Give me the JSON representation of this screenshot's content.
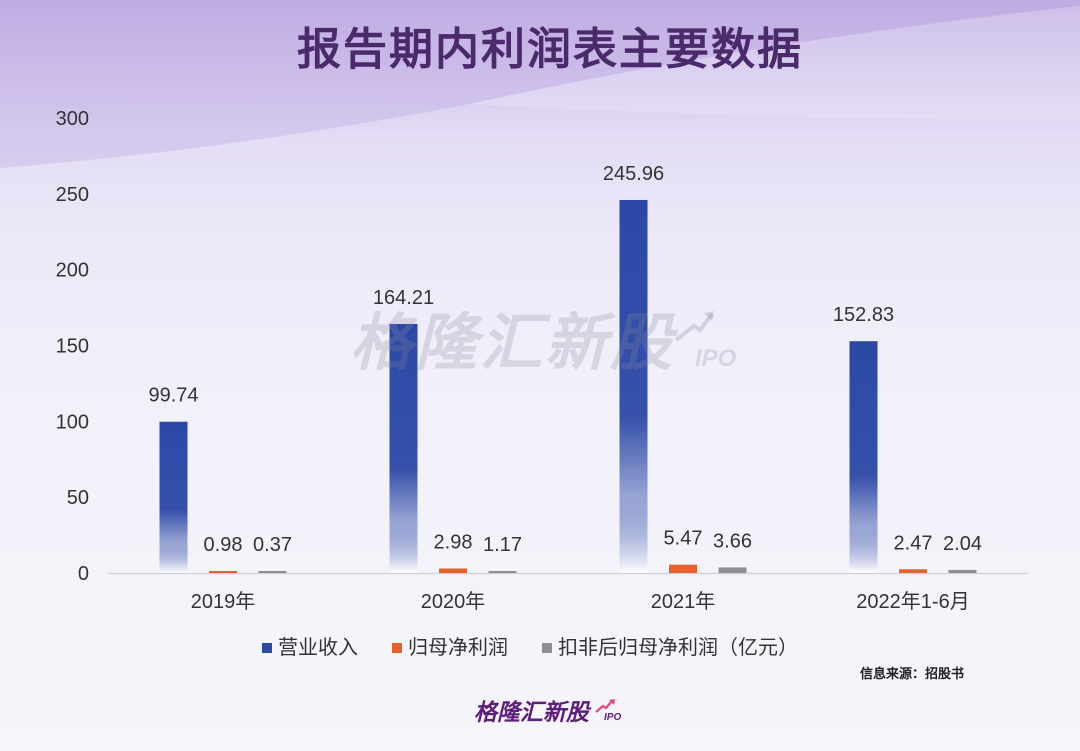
{
  "colors": {
    "title": "#4a2a6a",
    "logo": "#5e1f7a",
    "logo_accent": "#e2487b",
    "watermark": "rgba(140,140,160,0.26)",
    "axis": "#cfcfd6"
  },
  "source": "信息来源：招股书",
  "watermark": {
    "text": "格隆汇新股",
    "sub": "IPO"
  },
  "logo": {
    "text": "格隆汇新股",
    "sub": "IPO"
  },
  "chart_data": {
    "type": "bar",
    "title": "报告期内利润表主要数据",
    "categories": [
      "2019年",
      "2020年",
      "2021年",
      "2022年1-6月"
    ],
    "series": [
      {
        "name": "营业收入",
        "values": [
          99.74,
          164.21,
          245.96,
          152.83
        ],
        "color": "#2c48a6",
        "fill": "gradient"
      },
      {
        "name": "归母净利润",
        "values": [
          0.98,
          2.98,
          5.47,
          2.47
        ],
        "color": "#e8612c",
        "fill": "solid"
      },
      {
        "name": "扣非后归母净利润（亿元）",
        "values": [
          0.37,
          1.17,
          3.66,
          2.04
        ],
        "color": "#8e8e93",
        "fill": "solid"
      }
    ],
    "ylim": [
      0,
      300
    ],
    "yticks": [
      0,
      50,
      100,
      150,
      200,
      250,
      300
    ],
    "grid": false,
    "legend": "bottom",
    "data_labels": true
  }
}
